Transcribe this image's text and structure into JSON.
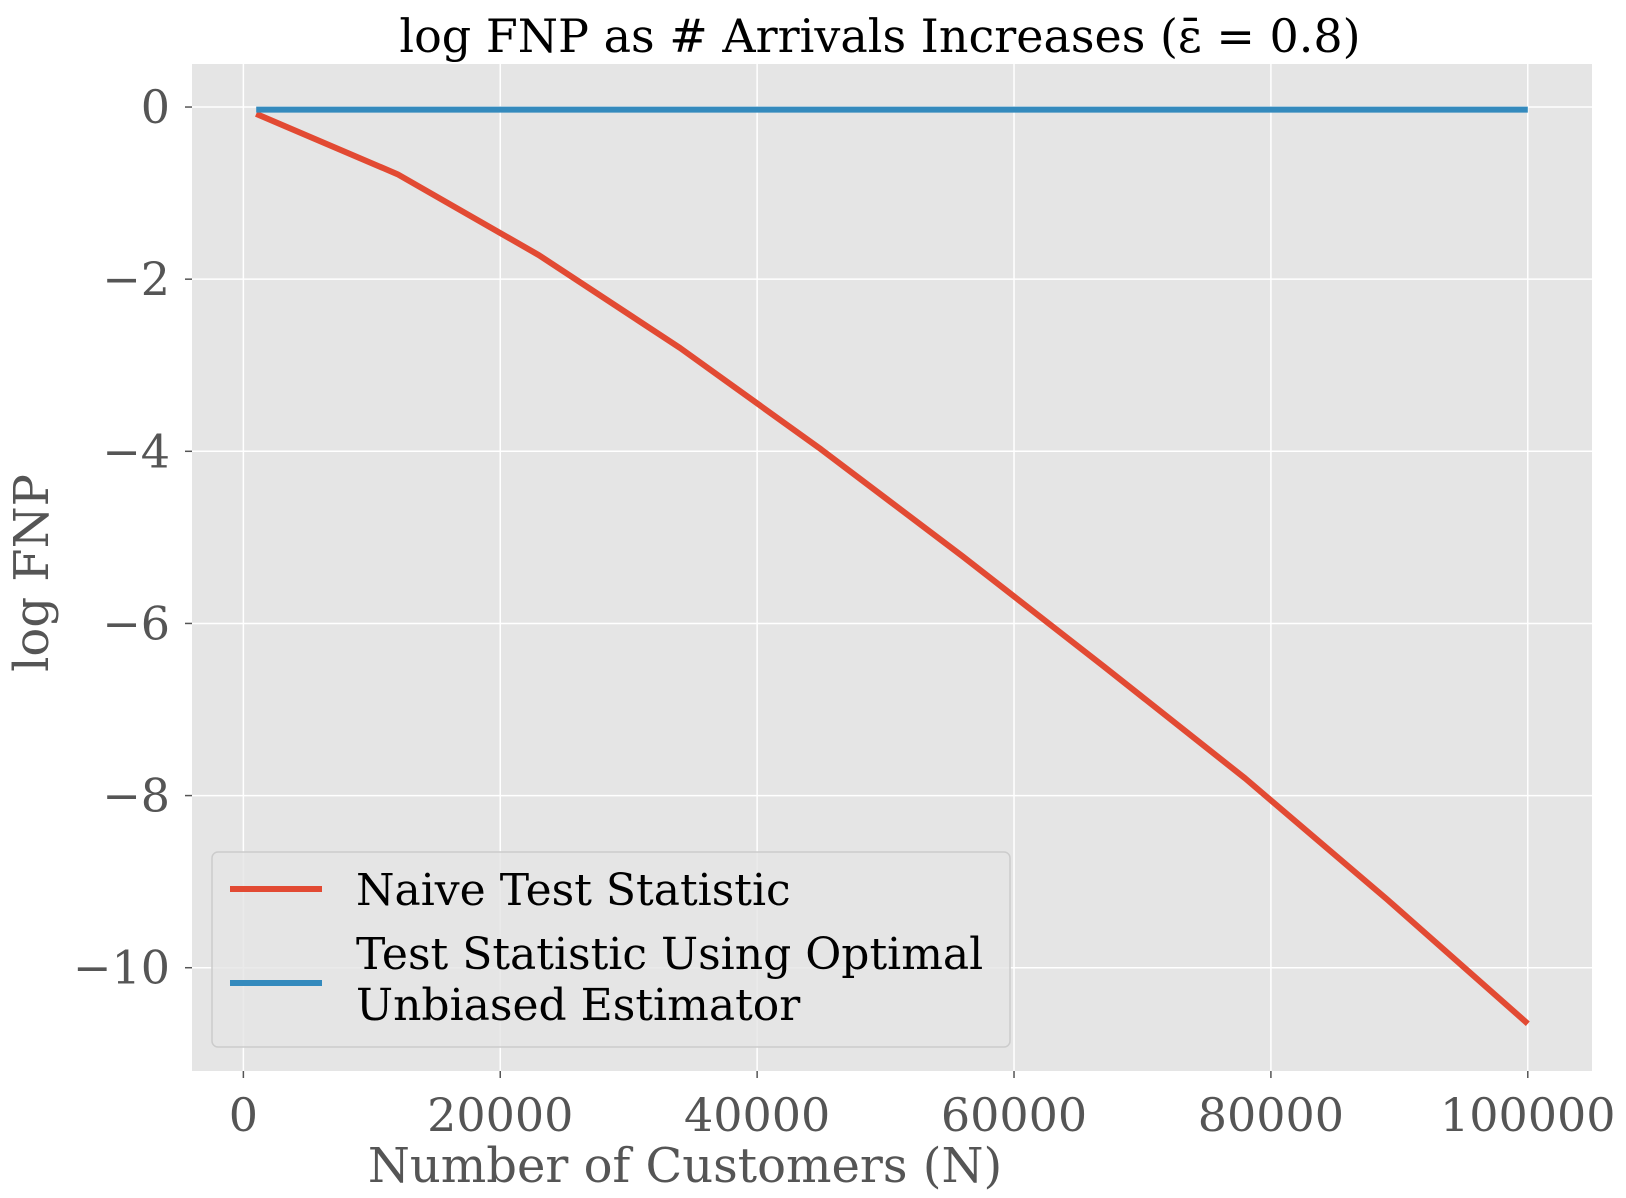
{
  "chart_data": {
    "type": "line",
    "title": "log FNP as # Arrivals Increases (ε̄ = 0.8)",
    "xlabel": "Number of Customers (N)",
    "ylabel": "log FNP",
    "xlim": [
      -4000,
      105000
    ],
    "ylim": [
      -11.2,
      0.5
    ],
    "xticks": [
      0,
      20000,
      40000,
      60000,
      80000,
      100000
    ],
    "xtick_labels": [
      "0",
      "20000",
      "40000",
      "60000",
      "80000",
      "100000"
    ],
    "yticks": [
      0,
      -2,
      -4,
      -6,
      -8,
      -10
    ],
    "ytick_labels": [
      "0",
      "−2",
      "−4",
      "−6",
      "−8",
      "−10"
    ],
    "grid": true,
    "legend_position": "lower-left",
    "series": [
      {
        "name": "Naive Test Statistic",
        "color": "#E24A33",
        "x": [
          1000,
          12000,
          23000,
          34000,
          45000,
          56000,
          67000,
          78000,
          89000,
          100000
        ],
        "y": [
          -0.08,
          -0.78,
          -1.72,
          -2.8,
          -3.98,
          -5.22,
          -6.5,
          -7.8,
          -9.2,
          -10.65
        ]
      },
      {
        "name": "Test Statistic Using Optimal Unbiased Estimator",
        "legend_lines": [
          "Test Statistic Using Optimal",
          "Unbiased Estimator"
        ],
        "color": "#348ABD",
        "x": [
          1000,
          12000,
          23000,
          34000,
          45000,
          56000,
          67000,
          78000,
          89000,
          100000
        ],
        "y": [
          -0.03,
          -0.03,
          -0.03,
          -0.03,
          -0.03,
          -0.03,
          -0.03,
          -0.03,
          -0.03,
          -0.03
        ]
      }
    ]
  }
}
